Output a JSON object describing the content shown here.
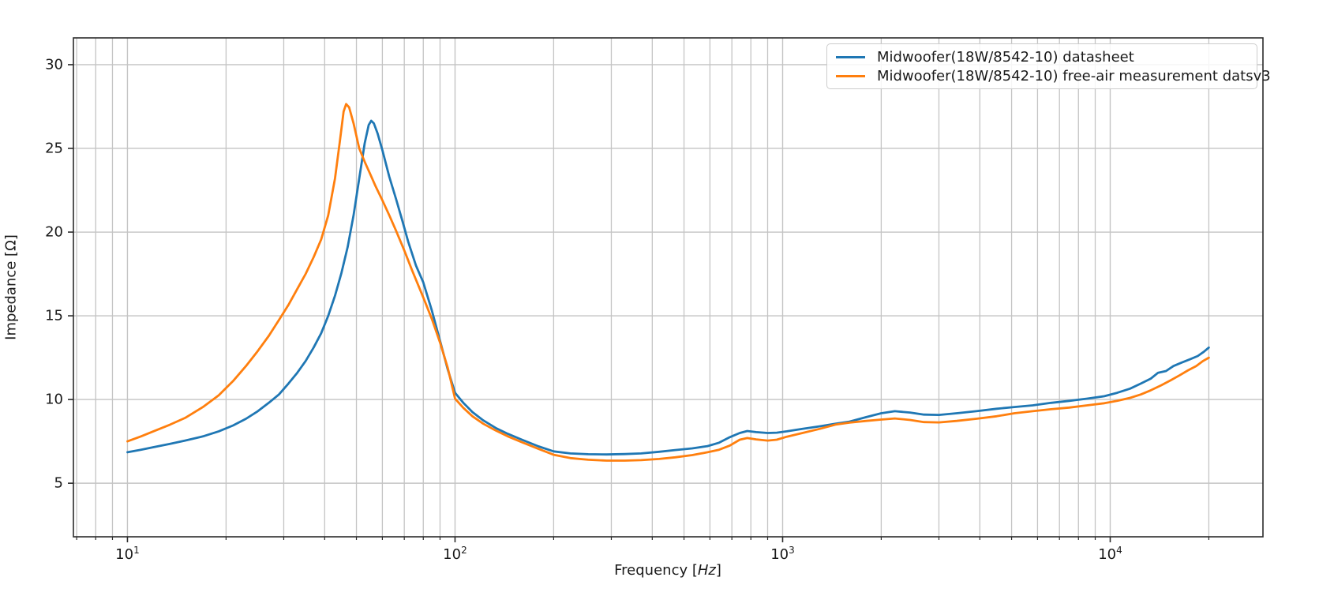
{
  "chart_data": {
    "type": "line",
    "title": "",
    "xlabel": {
      "prefix": "Frequency [",
      "italic": "Hz",
      "suffix": "]"
    },
    "ylabel": "Impedance [Ω]",
    "x_scale": "log",
    "xlim": [
      6.84,
      29260
    ],
    "ylim": [
      1.8,
      31.6
    ],
    "grid": {
      "vertical_major": true,
      "vertical_minor": true,
      "horizontal_major": true,
      "color": "#c4c4c4"
    },
    "legend_position": "upper right",
    "x_major_ticks": [
      {
        "value": 10,
        "base": "10",
        "exponent": "1"
      },
      {
        "value": 100,
        "base": "10",
        "exponent": "2"
      },
      {
        "value": 1000,
        "base": "10",
        "exponent": "3"
      },
      {
        "value": 10000,
        "base": "10",
        "exponent": "4"
      }
    ],
    "x_minor_ticks": [
      7,
      8,
      9,
      20,
      30,
      40,
      50,
      60,
      70,
      80,
      90,
      200,
      300,
      400,
      500,
      600,
      700,
      800,
      900,
      2000,
      3000,
      4000,
      5000,
      6000,
      7000,
      8000,
      9000,
      20000
    ],
    "y_ticks": [
      5,
      10,
      15,
      20,
      25,
      30
    ],
    "series": [
      {
        "name": "Midwoofer(18W/8542-10) datasheet",
        "color": "#1f77b4",
        "points": [
          [
            10,
            6.85
          ],
          [
            11,
            7.0
          ],
          [
            12,
            7.15
          ],
          [
            13.5,
            7.35
          ],
          [
            15,
            7.55
          ],
          [
            17,
            7.8
          ],
          [
            19,
            8.1
          ],
          [
            21,
            8.45
          ],
          [
            23,
            8.85
          ],
          [
            25,
            9.3
          ],
          [
            27,
            9.8
          ],
          [
            29,
            10.3
          ],
          [
            31,
            10.95
          ],
          [
            33,
            11.6
          ],
          [
            35,
            12.3
          ],
          [
            37,
            13.1
          ],
          [
            39,
            13.95
          ],
          [
            41,
            15.0
          ],
          [
            43,
            16.2
          ],
          [
            45,
            17.55
          ],
          [
            47,
            19.1
          ],
          [
            49,
            21.0
          ],
          [
            51,
            23.2
          ],
          [
            53,
            25.3
          ],
          [
            54.5,
            26.4
          ],
          [
            55.5,
            26.65
          ],
          [
            56.5,
            26.5
          ],
          [
            58,
            25.9
          ],
          [
            60,
            24.9
          ],
          [
            63,
            23.3
          ],
          [
            66,
            22.0
          ],
          [
            69,
            20.7
          ],
          [
            72,
            19.4
          ],
          [
            76,
            18.0
          ],
          [
            80,
            17.0
          ],
          [
            85,
            15.3
          ],
          [
            90,
            13.5
          ],
          [
            95,
            11.8
          ],
          [
            100,
            10.4
          ],
          [
            106,
            9.8
          ],
          [
            113,
            9.25
          ],
          [
            122,
            8.75
          ],
          [
            133,
            8.3
          ],
          [
            145,
            7.95
          ],
          [
            160,
            7.6
          ],
          [
            180,
            7.2
          ],
          [
            200,
            6.9
          ],
          [
            225,
            6.78
          ],
          [
            255,
            6.73
          ],
          [
            290,
            6.72
          ],
          [
            330,
            6.74
          ],
          [
            370,
            6.78
          ],
          [
            420,
            6.88
          ],
          [
            470,
            6.98
          ],
          [
            530,
            7.08
          ],
          [
            590,
            7.22
          ],
          [
            640,
            7.42
          ],
          [
            690,
            7.75
          ],
          [
            740,
            8.0
          ],
          [
            780,
            8.12
          ],
          [
            830,
            8.05
          ],
          [
            900,
            8.0
          ],
          [
            960,
            8.02
          ],
          [
            1030,
            8.1
          ],
          [
            1150,
            8.25
          ],
          [
            1300,
            8.4
          ],
          [
            1450,
            8.55
          ],
          [
            1600,
            8.68
          ],
          [
            1800,
            8.95
          ],
          [
            2000,
            9.18
          ],
          [
            2200,
            9.3
          ],
          [
            2450,
            9.22
          ],
          [
            2700,
            9.1
          ],
          [
            3000,
            9.08
          ],
          [
            3400,
            9.18
          ],
          [
            3900,
            9.3
          ],
          [
            4500,
            9.45
          ],
          [
            5100,
            9.55
          ],
          [
            5800,
            9.65
          ],
          [
            6600,
            9.8
          ],
          [
            7500,
            9.92
          ],
          [
            8500,
            10.05
          ],
          [
            9600,
            10.2
          ],
          [
            10500,
            10.4
          ],
          [
            11500,
            10.65
          ],
          [
            12400,
            10.95
          ],
          [
            13300,
            11.25
          ],
          [
            14000,
            11.6
          ],
          [
            14800,
            11.7
          ],
          [
            15600,
            12.0
          ],
          [
            16500,
            12.2
          ],
          [
            17500,
            12.4
          ],
          [
            18500,
            12.6
          ],
          [
            19300,
            12.85
          ],
          [
            20000,
            13.1
          ]
        ]
      },
      {
        "name": "Midwoofer(18W/8542-10) free-air measurement datsv3",
        "color": "#ff7f0e",
        "points": [
          [
            10,
            7.5
          ],
          [
            11,
            7.8
          ],
          [
            12,
            8.1
          ],
          [
            13.5,
            8.5
          ],
          [
            15,
            8.9
          ],
          [
            17,
            9.55
          ],
          [
            19,
            10.25
          ],
          [
            21,
            11.1
          ],
          [
            23,
            12.0
          ],
          [
            25,
            12.9
          ],
          [
            27,
            13.8
          ],
          [
            29,
            14.75
          ],
          [
            31,
            15.65
          ],
          [
            33,
            16.6
          ],
          [
            35,
            17.5
          ],
          [
            37,
            18.5
          ],
          [
            39,
            19.55
          ],
          [
            41,
            21.0
          ],
          [
            43,
            23.2
          ],
          [
            44.5,
            25.4
          ],
          [
            45.7,
            27.2
          ],
          [
            46.5,
            27.65
          ],
          [
            47.5,
            27.45
          ],
          [
            49,
            26.5
          ],
          [
            51,
            25.0
          ],
          [
            53,
            24.2
          ],
          [
            55,
            23.5
          ],
          [
            57,
            22.8
          ],
          [
            60,
            21.9
          ],
          [
            63,
            21.0
          ],
          [
            66,
            20.1
          ],
          [
            70,
            18.9
          ],
          [
            74,
            17.7
          ],
          [
            80,
            16.1
          ],
          [
            85,
            14.8
          ],
          [
            90,
            13.4
          ],
          [
            95,
            11.9
          ],
          [
            100,
            10.05
          ],
          [
            106,
            9.5
          ],
          [
            113,
            9.0
          ],
          [
            122,
            8.55
          ],
          [
            133,
            8.15
          ],
          [
            145,
            7.8
          ],
          [
            160,
            7.45
          ],
          [
            180,
            7.05
          ],
          [
            200,
            6.7
          ],
          [
            225,
            6.5
          ],
          [
            255,
            6.4
          ],
          [
            290,
            6.35
          ],
          [
            330,
            6.35
          ],
          [
            370,
            6.38
          ],
          [
            420,
            6.45
          ],
          [
            470,
            6.55
          ],
          [
            530,
            6.68
          ],
          [
            590,
            6.85
          ],
          [
            640,
            7.0
          ],
          [
            690,
            7.25
          ],
          [
            740,
            7.6
          ],
          [
            780,
            7.7
          ],
          [
            830,
            7.62
          ],
          [
            900,
            7.55
          ],
          [
            960,
            7.6
          ],
          [
            1030,
            7.78
          ],
          [
            1150,
            8.0
          ],
          [
            1300,
            8.25
          ],
          [
            1450,
            8.5
          ],
          [
            1600,
            8.62
          ],
          [
            1800,
            8.72
          ],
          [
            2000,
            8.8
          ],
          [
            2200,
            8.87
          ],
          [
            2450,
            8.78
          ],
          [
            2700,
            8.65
          ],
          [
            3000,
            8.63
          ],
          [
            3400,
            8.72
          ],
          [
            3900,
            8.85
          ],
          [
            4500,
            9.0
          ],
          [
            5100,
            9.18
          ],
          [
            5800,
            9.3
          ],
          [
            6600,
            9.42
          ],
          [
            7500,
            9.52
          ],
          [
            8500,
            9.65
          ],
          [
            9600,
            9.78
          ],
          [
            10500,
            9.92
          ],
          [
            11500,
            10.1
          ],
          [
            12400,
            10.3
          ],
          [
            13300,
            10.55
          ],
          [
            14300,
            10.85
          ],
          [
            15300,
            11.15
          ],
          [
            16300,
            11.45
          ],
          [
            17300,
            11.75
          ],
          [
            18300,
            12.0
          ],
          [
            19200,
            12.3
          ],
          [
            20000,
            12.5
          ]
        ]
      }
    ]
  }
}
